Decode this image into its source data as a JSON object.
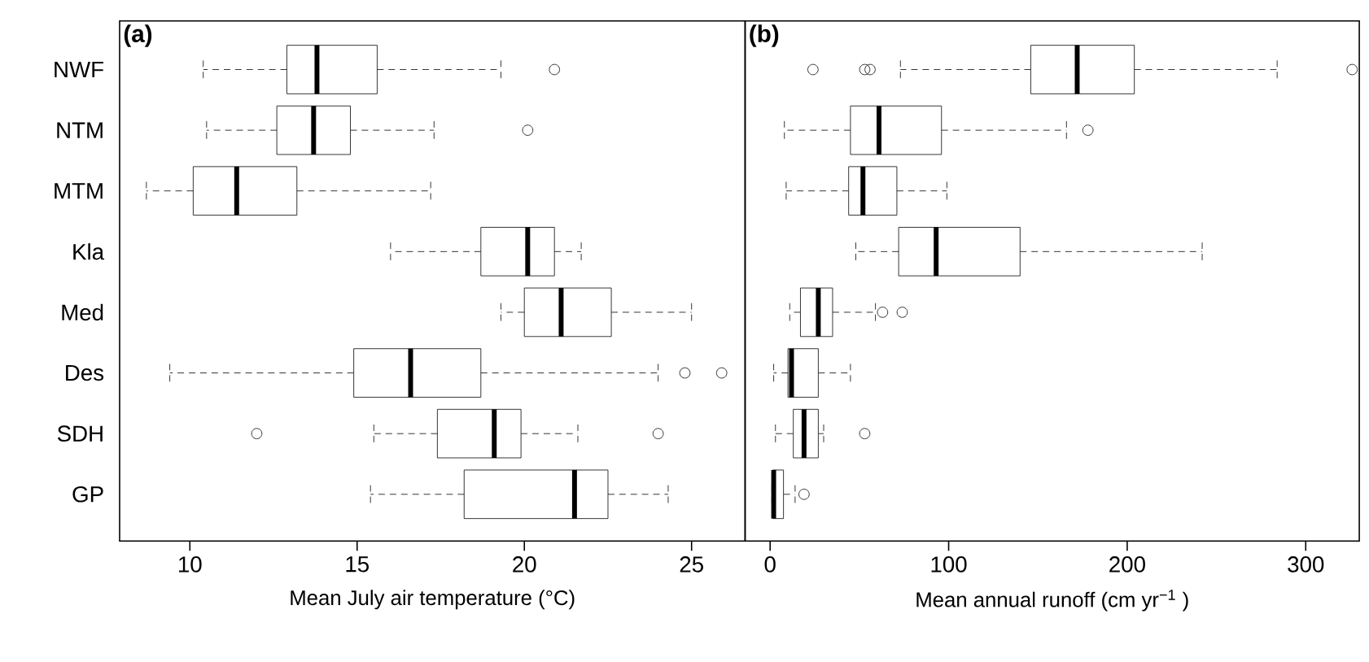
{
  "chart_data": [
    {
      "type": "box",
      "orientation": "horizontal",
      "categories": [
        "NWF",
        "NTM",
        "MTM",
        "Kla",
        "Med",
        "Des",
        "SDH",
        "GP"
      ],
      "xlabel": "Mean July air temperature (°C)",
      "annotations": [
        "(a)"
      ],
      "xlim": [
        7.9,
        26.6
      ],
      "xticks": [
        10,
        15,
        20,
        25
      ],
      "marker": "circle",
      "boxes": [
        {
          "low": 10.4,
          "q1": 12.9,
          "median": 13.8,
          "q3": 15.6,
          "high": 19.3,
          "outliers": [
            20.9
          ]
        },
        {
          "low": 10.5,
          "q1": 12.6,
          "median": 13.7,
          "q3": 14.8,
          "high": 17.3,
          "outliers": [
            20.1
          ]
        },
        {
          "low": 8.7,
          "q1": 10.1,
          "median": 11.4,
          "q3": 13.2,
          "high": 17.2
        },
        {
          "low": 16.0,
          "q1": 18.7,
          "median": 20.1,
          "q3": 20.9,
          "high": 21.7
        },
        {
          "low": 19.3,
          "q1": 20.0,
          "median": 21.1,
          "q3": 22.6,
          "high": 25.0
        },
        {
          "low": 9.4,
          "q1": 14.9,
          "median": 16.6,
          "q3": 18.7,
          "high": 24.0,
          "outliers": [
            24.8,
            25.9
          ]
        },
        {
          "low": 15.5,
          "q1": 17.4,
          "median": 19.1,
          "q3": 19.9,
          "high": 21.6,
          "outliers": [
            12.0,
            24.0
          ]
        },
        {
          "low": 15.4,
          "q1": 18.2,
          "median": 21.5,
          "q3": 22.5,
          "high": 24.3
        }
      ]
    },
    {
      "type": "box",
      "orientation": "horizontal",
      "xlabel": "Mean annual runoff (cm yr$^{−1}$ )",
      "annotations": [
        "(b)"
      ],
      "xlim": [
        -14,
        330
      ],
      "xticks": [
        0,
        100,
        200,
        300
      ],
      "marker": "circle",
      "tick_labels": "x",
      "boxes": [
        {
          "low": 73,
          "q1": 146,
          "median": 172,
          "q3": 204,
          "high": 284,
          "outliers": [
            24,
            53,
            56,
            326
          ]
        },
        {
          "low": 8,
          "q1": 45,
          "median": 61,
          "q3": 96,
          "high": 166,
          "outliers": [
            178
          ]
        },
        {
          "low": 9,
          "q1": 44,
          "median": 52,
          "q3": 71,
          "high": 99
        },
        {
          "low": 48,
          "q1": 72,
          "median": 93,
          "q3": 140,
          "high": 242
        },
        {
          "low": 11,
          "q1": 17,
          "median": 27,
          "q3": 35,
          "high": 59,
          "outliers": [
            63,
            74
          ]
        },
        {
          "low": 2,
          "q1": 10,
          "median": 12,
          "q3": 27,
          "high": 45
        },
        {
          "low": 3,
          "q1": 13,
          "median": 19,
          "q3": 27,
          "high": 30,
          "outliers": [
            53
          ]
        },
        {
          "low": 1,
          "q1": 1.5,
          "median": 2,
          "q3": 7.5,
          "high": 14,
          "outliers": [
            19
          ]
        }
      ]
    }
  ]
}
